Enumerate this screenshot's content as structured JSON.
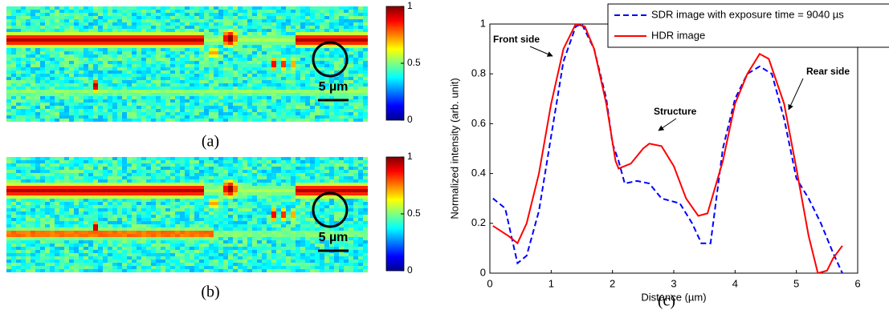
{
  "panels": [
    {
      "label": "(a)",
      "scale_bar": "5 µm",
      "colorbar": {
        "lim": [
          0,
          1
        ],
        "ticks": [
          0,
          0.5,
          1
        ]
      }
    },
    {
      "label": "(b)",
      "scale_bar": "5 µm",
      "colorbar": {
        "lim": [
          0,
          1
        ],
        "ticks": [
          0,
          0.5,
          1
        ]
      }
    }
  ],
  "chart_data": {
    "type": "line",
    "label": "(c)",
    "x_label": "Distance (µm)",
    "y_label": "Normalized intensity (arb. unit)",
    "xlim": [
      0,
      6
    ],
    "xticks": [
      0,
      1,
      2,
      3,
      4,
      5,
      6
    ],
    "ylim": [
      0,
      1
    ],
    "yticks": [
      0,
      0.2,
      0.4,
      0.6,
      0.8,
      1
    ],
    "legend": "upper right",
    "annotations": [
      "Front side",
      "Structure",
      "Rear side"
    ],
    "series": [
      {
        "name": "SDR image with exposure time = 9040 µs",
        "color": "#0000ff",
        "dashed": true,
        "x": [
          0.05,
          0.25,
          0.35,
          0.45,
          0.6,
          0.8,
          1.0,
          1.2,
          1.4,
          1.5,
          1.7,
          1.9,
          2.0,
          2.1,
          2.2,
          2.4,
          2.6,
          2.8,
          3.1,
          3.3,
          3.45,
          3.6,
          3.8,
          4.0,
          4.2,
          4.4,
          4.6,
          4.8,
          5.0,
          5.2,
          5.4,
          5.6,
          5.75
        ],
        "values": [
          0.3,
          0.26,
          0.15,
          0.04,
          0.07,
          0.25,
          0.55,
          0.85,
          0.99,
          1.0,
          0.9,
          0.7,
          0.52,
          0.45,
          0.36,
          0.37,
          0.36,
          0.3,
          0.28,
          0.2,
          0.12,
          0.12,
          0.5,
          0.7,
          0.8,
          0.83,
          0.8,
          0.62,
          0.38,
          0.3,
          0.2,
          0.08,
          0.0
        ]
      },
      {
        "name": "HDR image",
        "color": "#ff0000",
        "dashed": false,
        "x": [
          0.05,
          0.3,
          0.45,
          0.6,
          0.8,
          1.0,
          1.2,
          1.4,
          1.55,
          1.7,
          1.9,
          2.05,
          2.1,
          2.3,
          2.5,
          2.6,
          2.8,
          3.0,
          3.2,
          3.4,
          3.55,
          3.8,
          4.0,
          4.2,
          4.4,
          4.55,
          4.8,
          5.0,
          5.2,
          5.35,
          5.5,
          5.6,
          5.75
        ],
        "values": [
          0.19,
          0.15,
          0.12,
          0.2,
          0.4,
          0.68,
          0.9,
          1.0,
          0.99,
          0.9,
          0.68,
          0.45,
          0.42,
          0.44,
          0.5,
          0.52,
          0.51,
          0.43,
          0.3,
          0.23,
          0.24,
          0.45,
          0.68,
          0.8,
          0.88,
          0.86,
          0.68,
          0.42,
          0.15,
          0.0,
          0.01,
          0.06,
          0.11
        ]
      }
    ]
  }
}
